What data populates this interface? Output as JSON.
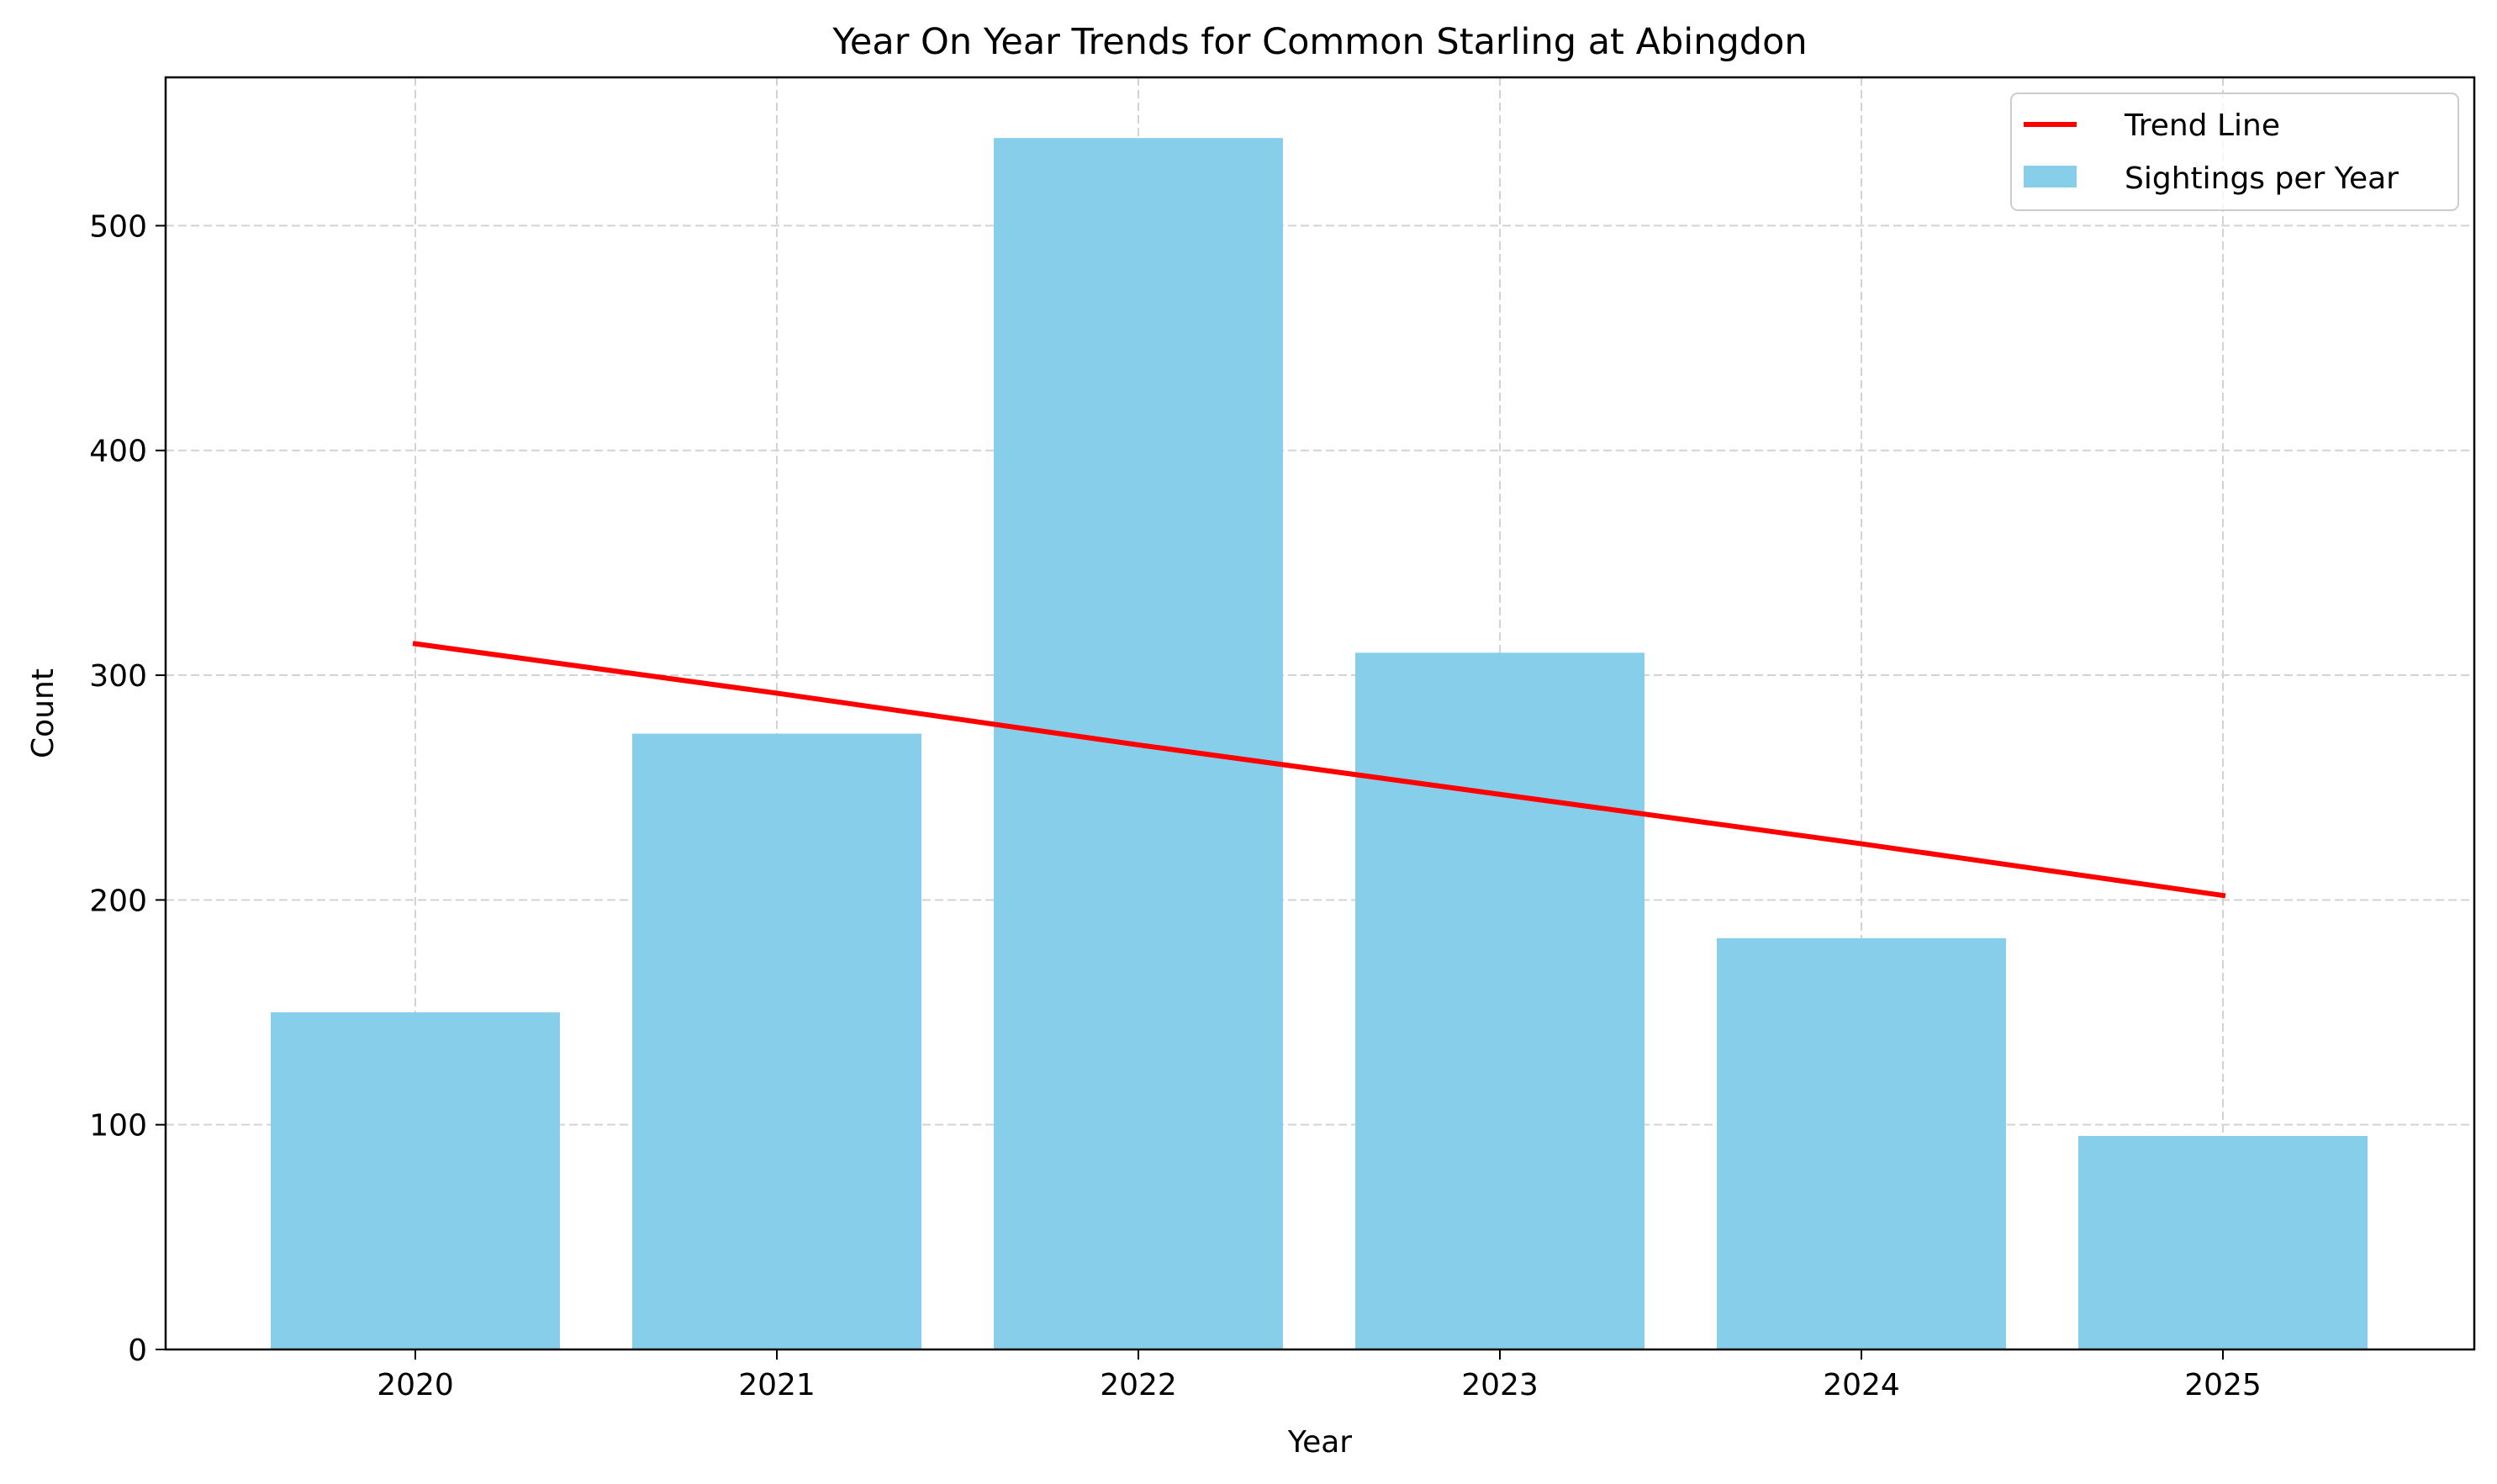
{
  "chart_data": {
    "type": "bar",
    "title": "Year On Year Trends for Common Starling at Abingdon",
    "xlabel": "Year",
    "ylabel": "Count",
    "categories": [
      "2020",
      "2021",
      "2022",
      "2023",
      "2024",
      "2025"
    ],
    "series": [
      {
        "name": "Sightings per Year",
        "type": "bar",
        "color": "#87ceeb",
        "values": [
          150,
          274,
          539,
          310,
          183,
          95
        ]
      },
      {
        "name": "Trend Line",
        "type": "line",
        "color": "#ff0000",
        "values": [
          314,
          292,
          269,
          247,
          225,
          202
        ]
      }
    ],
    "yticks": [
      0,
      100,
      200,
      300,
      400,
      500
    ],
    "ylim": [
      0,
      566
    ],
    "grid": true,
    "legend_position": "top-right"
  }
}
